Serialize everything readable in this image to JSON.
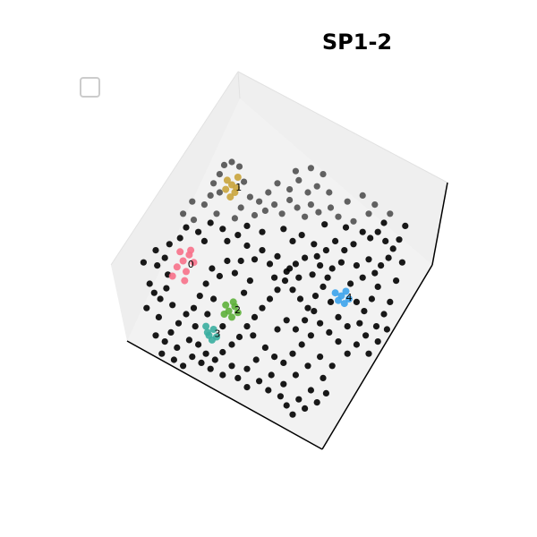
{
  "chart_data": {
    "type": "scatter",
    "projection": "3d",
    "title": "SP1-2",
    "legend": {
      "placement": "top-left",
      "entries": []
    },
    "grid": false,
    "colors": {
      "background_points": "#000000",
      "cluster_0": "#f77189",
      "cluster_1": "#c9a43c",
      "cluster_2": "#5db03a",
      "cluster_3": "#3aaea0",
      "cluster_4": "#3ba3ec"
    },
    "clusters": [
      {
        "label": "0",
        "color": "#f77189",
        "points": [
          [
            -0.62,
            0.05
          ],
          [
            -0.58,
            0.09
          ],
          [
            -0.66,
            0.01
          ],
          [
            -0.6,
            -0.02
          ],
          [
            -0.55,
            0.04
          ],
          [
            -0.64,
            0.11
          ],
          [
            -0.69,
            -0.05
          ],
          [
            -0.57,
            0.12
          ],
          [
            -0.61,
            -0.08
          ]
        ]
      },
      {
        "label": "1",
        "color": "#c9a43c",
        "points": [
          [
            -0.3,
            0.55
          ],
          [
            -0.28,
            0.5
          ],
          [
            -0.33,
            0.58
          ],
          [
            -0.26,
            0.6
          ],
          [
            -0.31,
            0.47
          ],
          [
            -0.27,
            0.53
          ],
          [
            -0.34,
            0.52
          ]
        ]
      },
      {
        "label": "2",
        "color": "#5db03a",
        "points": [
          [
            -0.32,
            -0.28
          ],
          [
            -0.28,
            -0.25
          ],
          [
            -0.35,
            -0.3
          ],
          [
            -0.3,
            -0.32
          ],
          [
            -0.26,
            -0.29
          ],
          [
            -0.34,
            -0.24
          ],
          [
            -0.29,
            -0.22
          ]
        ]
      },
      {
        "label": "3",
        "color": "#3aaea0",
        "points": [
          [
            -0.45,
            -0.44
          ],
          [
            -0.42,
            -0.4
          ],
          [
            -0.47,
            -0.38
          ],
          [
            -0.43,
            -0.47
          ],
          [
            -0.4,
            -0.45
          ],
          [
            -0.46,
            -0.42
          ]
        ]
      },
      {
        "label": "4",
        "color": "#3ba3ec",
        "points": [
          [
            0.42,
            -0.18
          ],
          [
            0.45,
            -0.15
          ],
          [
            0.4,
            -0.21
          ],
          [
            0.47,
            -0.2
          ],
          [
            0.44,
            -0.23
          ],
          [
            0.38,
            -0.16
          ]
        ]
      }
    ],
    "background_points": [
      [
        -0.81,
        -0.16
      ],
      [
        -0.77,
        -0.2
      ],
      [
        -0.73,
        -0.13
      ],
      [
        -0.69,
        -0.24
      ],
      [
        -0.79,
        0.02
      ],
      [
        -0.74,
        0.07
      ],
      [
        -0.71,
        0.16
      ],
      [
        -0.64,
        0.2
      ],
      [
        -0.6,
        0.27
      ],
      [
        -0.55,
        0.32
      ],
      [
        -0.52,
        0.24
      ],
      [
        -0.48,
        0.18
      ],
      [
        -0.44,
        0.3
      ],
      [
        -0.4,
        0.36
      ],
      [
        -0.36,
        0.26
      ],
      [
        -0.33,
        0.18
      ],
      [
        -0.28,
        0.33
      ],
      [
        -0.24,
        0.4
      ],
      [
        -0.2,
        0.28
      ],
      [
        -0.15,
        0.35
      ],
      [
        -0.38,
        0.62
      ],
      [
        -0.35,
        0.68
      ],
      [
        -0.3,
        0.7
      ],
      [
        -0.25,
        0.67
      ],
      [
        -0.22,
        0.57
      ],
      [
        -0.38,
        0.5
      ],
      [
        -0.42,
        0.56
      ],
      [
        -0.18,
        0.47
      ],
      [
        -0.12,
        0.44
      ],
      [
        -0.08,
        0.38
      ],
      [
        -0.02,
        0.42
      ],
      [
        0.03,
        0.36
      ],
      [
        0.08,
        0.45
      ],
      [
        0.13,
        0.4
      ],
      [
        0.18,
        0.34
      ],
      [
        0.22,
        0.42
      ],
      [
        0.27,
        0.37
      ],
      [
        0.31,
        0.29
      ],
      [
        0.35,
        0.4
      ],
      [
        0.4,
        0.34
      ],
      [
        0.45,
        0.27
      ],
      [
        0.5,
        0.31
      ],
      [
        0.56,
        0.24
      ],
      [
        0.61,
        0.2
      ],
      [
        0.66,
        0.24
      ],
      [
        0.71,
        0.18
      ],
      [
        0.76,
        0.13
      ],
      [
        0.8,
        0.19
      ],
      [
        0.73,
        0.07
      ],
      [
        0.68,
        0.02
      ],
      [
        0.64,
        -0.03
      ],
      [
        0.6,
        0.06
      ],
      [
        0.56,
        -0.06
      ],
      [
        0.52,
        0.02
      ],
      [
        0.48,
        -0.1
      ],
      [
        0.33,
        -0.06
      ],
      [
        0.28,
        0.02
      ],
      [
        0.23,
        -0.04
      ],
      [
        0.18,
        0.07
      ],
      [
        0.12,
        0.03
      ],
      [
        0.06,
        -0.02
      ],
      [
        0.0,
        0.08
      ],
      [
        -0.05,
        0.03
      ],
      [
        -0.1,
        0.12
      ],
      [
        -0.15,
        0.06
      ],
      [
        -0.2,
        0.15
      ],
      [
        -0.24,
        0.05
      ],
      [
        -0.28,
        -0.03
      ],
      [
        -0.33,
        0.05
      ],
      [
        -0.38,
        -0.05
      ],
      [
        -0.43,
        0.0
      ],
      [
        -0.47,
        -0.1
      ],
      [
        -0.51,
        -0.18
      ],
      [
        -0.55,
        -0.26
      ],
      [
        -0.6,
        -0.3
      ],
      [
        -0.65,
        -0.36
      ],
      [
        -0.7,
        -0.42
      ],
      [
        -0.74,
        -0.48
      ],
      [
        -0.66,
        -0.52
      ],
      [
        -0.58,
        -0.47
      ],
      [
        -0.52,
        -0.5
      ],
      [
        -0.47,
        -0.56
      ],
      [
        -0.41,
        -0.6
      ],
      [
        -0.36,
        -0.55
      ],
      [
        -0.3,
        -0.5
      ],
      [
        -0.25,
        -0.45
      ],
      [
        -0.2,
        -0.38
      ],
      [
        -0.15,
        -0.32
      ],
      [
        -0.1,
        -0.26
      ],
      [
        -0.05,
        -0.2
      ],
      [
        0.0,
        -0.14
      ],
      [
        0.05,
        -0.08
      ],
      [
        0.1,
        -0.14
      ],
      [
        0.15,
        -0.2
      ],
      [
        0.2,
        -0.26
      ],
      [
        0.25,
        -0.18
      ],
      [
        0.3,
        -0.12
      ],
      [
        0.35,
        -0.22
      ],
      [
        0.52,
        -0.22
      ],
      [
        0.57,
        -0.28
      ],
      [
        0.62,
        -0.2
      ],
      [
        0.66,
        -0.12
      ],
      [
        0.7,
        -0.3
      ],
      [
        0.65,
        -0.38
      ],
      [
        0.58,
        -0.44
      ],
      [
        0.52,
        -0.5
      ],
      [
        0.46,
        -0.56
      ],
      [
        0.4,
        -0.48
      ],
      [
        0.34,
        -0.42
      ],
      [
        0.28,
        -0.36
      ],
      [
        0.22,
        -0.44
      ],
      [
        0.16,
        -0.5
      ],
      [
        0.1,
        -0.56
      ],
      [
        0.04,
        -0.62
      ],
      [
        -0.02,
        -0.58
      ],
      [
        -0.08,
        -0.52
      ],
      [
        -0.14,
        -0.6
      ],
      [
        -0.2,
        -0.66
      ],
      [
        -0.26,
        -0.72
      ],
      [
        -0.2,
        -0.78
      ],
      [
        -0.12,
        -0.74
      ],
      [
        -0.04,
        -0.7
      ],
      [
        0.04,
        -0.76
      ],
      [
        0.12,
        -0.7
      ],
      [
        0.2,
        -0.64
      ],
      [
        0.28,
        -0.58
      ],
      [
        0.36,
        -0.64
      ],
      [
        0.3,
        -0.72
      ],
      [
        0.22,
        -0.8
      ],
      [
        0.14,
        -0.86
      ],
      [
        0.06,
        -0.9
      ],
      [
        0.1,
        -0.96
      ],
      [
        0.18,
        -0.92
      ],
      [
        0.26,
        -0.88
      ],
      [
        0.32,
        -0.82
      ],
      [
        0.02,
        -0.84
      ],
      [
        -0.06,
        -0.8
      ],
      [
        -0.3,
        -0.64
      ],
      [
        -0.36,
        -0.7
      ],
      [
        -0.44,
        -0.66
      ],
      [
        -0.5,
        -0.62
      ],
      [
        -0.56,
        -0.58
      ],
      [
        -0.62,
        -0.64
      ],
      [
        -0.68,
        -0.6
      ],
      [
        -0.76,
        -0.56
      ],
      [
        -0.8,
        -0.44
      ],
      [
        -0.78,
        -0.32
      ],
      [
        -0.86,
        -0.26
      ],
      [
        -0.84,
        -0.1
      ],
      [
        -0.88,
        0.04
      ],
      [
        -0.62,
        0.36
      ],
      [
        -0.56,
        0.44
      ],
      [
        -0.48,
        0.42
      ],
      [
        -0.44,
        0.48
      ],
      [
        -0.26,
        0.22
      ],
      [
        -0.1,
        0.24
      ],
      [
        0.04,
        0.26
      ],
      [
        0.1,
        0.18
      ],
      [
        0.16,
        0.22
      ],
      [
        0.24,
        0.16
      ],
      [
        0.32,
        0.12
      ],
      [
        0.38,
        0.18
      ],
      [
        0.44,
        0.12
      ],
      [
        0.5,
        0.16
      ],
      [
        0.42,
        0.04
      ],
      [
        0.36,
        0.0
      ],
      [
        0.26,
        0.08
      ],
      [
        0.14,
        -0.06
      ],
      [
        0.08,
        0.0
      ],
      [
        -0.02,
        -0.06
      ],
      [
        -0.18,
        -0.08
      ],
      [
        -0.22,
        -0.16
      ],
      [
        -0.42,
        -0.2
      ],
      [
        -0.46,
        -0.3
      ],
      [
        -0.54,
        -0.38
      ],
      [
        -0.36,
        -0.38
      ],
      [
        -0.16,
        -0.44
      ],
      [
        0.0,
        -0.4
      ],
      [
        0.06,
        -0.34
      ],
      [
        0.12,
        -0.4
      ],
      [
        0.18,
        -0.34
      ],
      [
        0.24,
        -0.28
      ],
      [
        0.4,
        -0.32
      ],
      [
        0.46,
        -0.38
      ],
      [
        0.54,
        -0.36
      ],
      [
        0.6,
        -0.56
      ],
      [
        0.66,
        -0.48
      ],
      [
        0.72,
        -0.4
      ],
      [
        0.74,
        -0.22
      ],
      [
        0.78,
        -0.08
      ],
      [
        0.82,
        0.04
      ],
      [
        0.84,
        0.28
      ],
      [
        0.7,
        0.3
      ],
      [
        0.6,
        0.36
      ],
      [
        0.46,
        0.44
      ],
      [
        0.56,
        0.48
      ],
      [
        0.64,
        0.42
      ],
      [
        0.74,
        0.36
      ],
      [
        -0.72,
        -0.04
      ],
      [
        -0.8,
        0.12
      ],
      [
        -0.06,
        0.5
      ],
      [
        0.0,
        0.56
      ],
      [
        0.08,
        0.52
      ],
      [
        0.14,
        0.58
      ],
      [
        0.2,
        0.5
      ],
      [
        0.26,
        0.54
      ],
      [
        0.34,
        0.5
      ],
      [
        0.3,
        0.62
      ],
      [
        0.22,
        0.66
      ],
      [
        0.12,
        0.64
      ]
    ]
  }
}
